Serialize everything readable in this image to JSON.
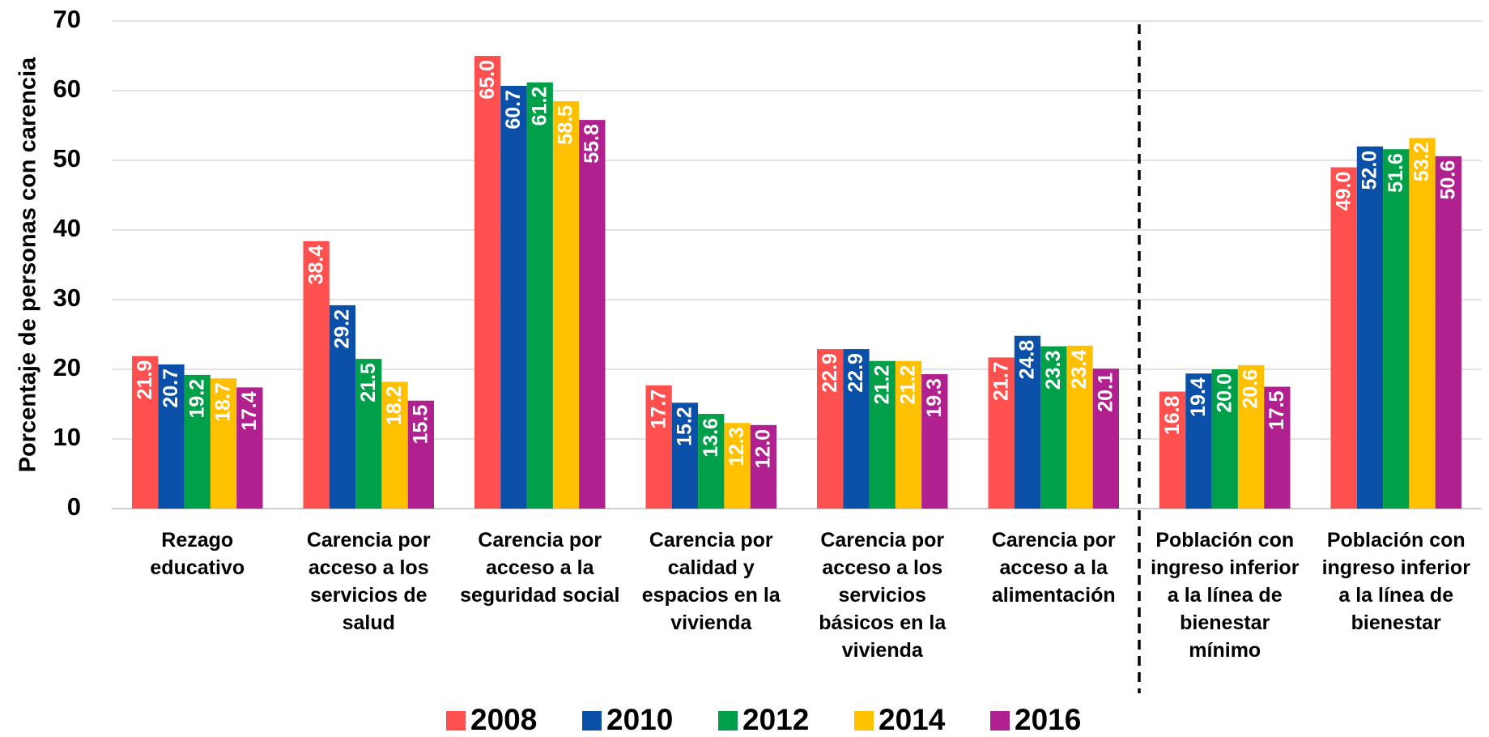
{
  "chart_data": {
    "type": "bar",
    "y_label": "Porcentaje de personas con carencia",
    "categories": [
      "Rezago educativo",
      "Carencia por acceso a los servicios de salud",
      "Carencia por acceso a la seguridad social",
      "Carencia por calidad y espacios en la vivienda",
      "Carencia por acceso a los servicios básicos en la vivienda",
      "Carencia por acceso a la alimentación",
      "Población con ingreso inferior a la línea de bienestar mínimo",
      "Población con ingreso inferior a la línea de bienestar"
    ],
    "series": [
      {
        "name": "2008",
        "color": "#ff5050",
        "values": [
          21.9,
          38.4,
          65.0,
          17.7,
          22.9,
          21.7,
          16.8,
          49.0
        ],
        "value_labels": [
          "21.9",
          "38.4",
          "65.0",
          "17.7",
          "22.9",
          "21.7",
          "16.8",
          "49.0"
        ]
      },
      {
        "name": "2010",
        "color": "#0a50a8",
        "values": [
          20.7,
          29.2,
          60.7,
          15.2,
          22.9,
          24.8,
          19.4,
          52.0
        ],
        "value_labels": [
          "20.7",
          "29.2",
          "60.7",
          "15.2",
          "22.9",
          "24.8",
          "19.4",
          "52.0"
        ]
      },
      {
        "name": "2012",
        "color": "#00a04a",
        "values": [
          19.2,
          21.5,
          61.2,
          13.6,
          21.2,
          23.3,
          20.0,
          51.6
        ],
        "value_labels": [
          "19.2",
          "21.5",
          "61.2",
          "13.6",
          "21.2",
          "23.3",
          "20.0",
          "51.6"
        ]
      },
      {
        "name": "2014",
        "color": "#ffc000",
        "values": [
          18.7,
          18.2,
          58.5,
          12.3,
          21.2,
          23.4,
          20.6,
          53.2
        ],
        "value_labels": [
          "18.7",
          "18.2",
          "58.5",
          "12.3",
          "21.2",
          "23.4",
          "20.6",
          "53.2"
        ]
      },
      {
        "name": "2016",
        "color": "#b0208f",
        "values": [
          17.4,
          15.5,
          55.8,
          12.0,
          19.3,
          20.1,
          17.5,
          50.6
        ],
        "value_labels": [
          "17.4",
          "15.5",
          "55.8",
          "12.0",
          "19.3",
          "20.1",
          "17.5",
          "50.6"
        ]
      }
    ],
    "ylim": [
      0,
      70
    ],
    "yticks": [
      0,
      10,
      20,
      30,
      40,
      50,
      60,
      70
    ],
    "grid": true,
    "legend": "bottom"
  }
}
